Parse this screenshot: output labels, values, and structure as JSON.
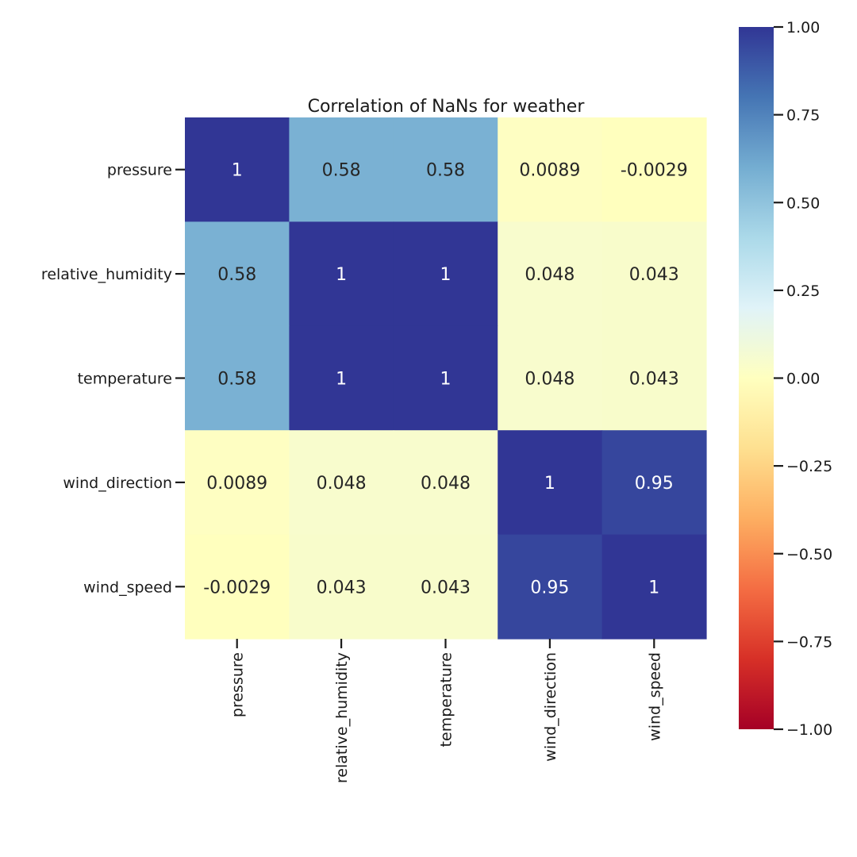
{
  "chart_data": {
    "type": "heatmap",
    "title": "Correlation of NaNs for weather",
    "rows": [
      "pressure",
      "relative_humidity",
      "temperature",
      "wind_direction",
      "wind_speed"
    ],
    "columns": [
      "pressure",
      "relative_humidity",
      "temperature",
      "wind_direction",
      "wind_speed"
    ],
    "values": [
      [
        1,
        0.58,
        0.58,
        0.0089,
        -0.0029
      ],
      [
        0.58,
        1,
        1,
        0.048,
        0.043
      ],
      [
        0.58,
        1,
        1,
        0.048,
        0.043
      ],
      [
        0.0089,
        0.048,
        0.048,
        1,
        0.95
      ],
      [
        -0.0029,
        0.043,
        0.043,
        0.95,
        1
      ]
    ],
    "cell_labels": [
      [
        "1",
        "0.58",
        "0.58",
        "0.0089",
        "-0.0029"
      ],
      [
        "0.58",
        "1",
        "1",
        "0.048",
        "0.043"
      ],
      [
        "0.58",
        "1",
        "1",
        "0.048",
        "0.043"
      ],
      [
        "0.0089",
        "0.048",
        "0.048",
        "1",
        "0.95"
      ],
      [
        "-0.0029",
        "0.043",
        "0.043",
        "0.95",
        "1"
      ]
    ],
    "colormap": "RdYlBu",
    "vmin": -1,
    "vmax": 1,
    "colorbar_ticks": [
      1,
      0.75,
      0.5,
      0.25,
      0,
      -0.25,
      -0.5,
      -0.75,
      -1
    ],
    "colorbar_tick_labels": [
      "1.00",
      "0.75",
      "0.50",
      "0.25",
      "0.00",
      "−0.25",
      "−0.50",
      "−0.75",
      "−1.00"
    ],
    "legend_position": "right"
  }
}
